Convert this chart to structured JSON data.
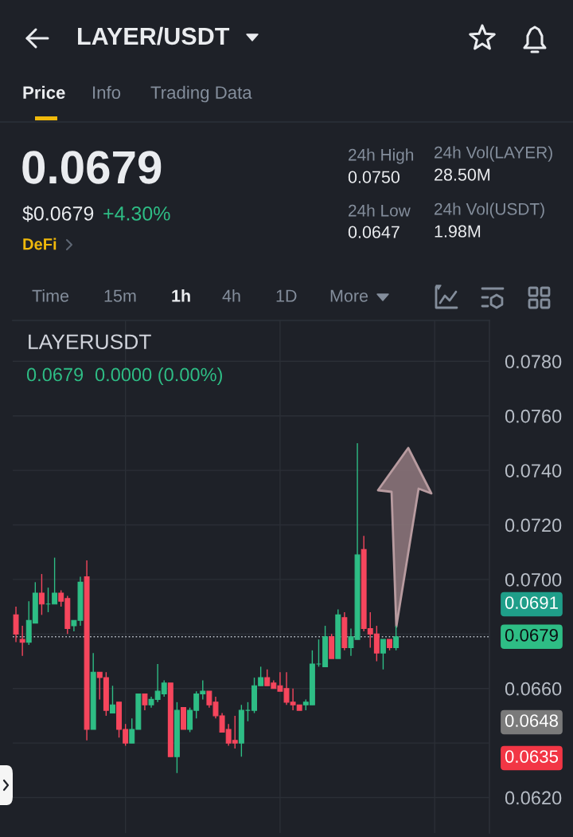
{
  "chart_data": {
    "type": "candlestick",
    "title": "LAYER/USDT",
    "subtitle": "LAYERUSDT",
    "annotations": [
      "Price",
      "Info",
      "Trading Data",
      "0.0679",
      "$0.0679",
      "+4.30%",
      "DeFi",
      "24h High",
      "0.0750",
      "24h Low",
      "0.0647",
      "24h Vol(LAYER)",
      "28.50M",
      "24h Vol(USDT)",
      "1.98M",
      "Time",
      "15m",
      "1h",
      "4h",
      "1D",
      "More",
      "0.0679",
      "0.0000 (0.00%)",
      "0.0691",
      "0.0648",
      "0.0635"
    ],
    "categories": [
      null,
      null,
      null,
      null,
      null,
      null,
      null,
      null,
      null,
      null,
      null,
      null,
      null,
      null,
      null,
      null,
      null,
      null,
      null,
      null,
      null,
      null,
      null,
      null,
      null,
      null,
      null,
      null,
      null,
      null,
      null,
      null,
      null,
      null,
      null,
      null,
      null,
      null,
      null,
      null,
      null,
      null,
      null,
      null,
      null,
      null,
      null,
      null,
      null,
      null,
      null,
      null,
      null,
      null,
      null,
      null,
      null,
      null,
      null,
      null,
      null,
      null,
      null,
      null,
      null,
      null,
      null,
      null,
      null,
      null,
      null,
      null,
      null,
      null
    ],
    "ohlc": [
      [
        0.0687,
        0.069,
        0.0677,
        0.068
      ],
      [
        0.0678,
        0.0683,
        0.0672,
        0.0677
      ],
      [
        0.0677,
        0.0692,
        0.0676,
        0.0685
      ],
      [
        0.0684,
        0.0699,
        0.0684,
        0.0695
      ],
      [
        0.0695,
        0.0702,
        0.0687,
        0.0691
      ],
      [
        0.0691,
        0.0697,
        0.0688,
        0.0691
      ],
      [
        0.0691,
        0.0708,
        0.0691,
        0.0695
      ],
      [
        0.0695,
        0.0696,
        0.069,
        0.0692
      ],
      [
        0.0693,
        0.0694,
        0.068,
        0.0682
      ],
      [
        0.0683,
        0.0685,
        0.0681,
        0.0685
      ],
      [
        0.0685,
        0.0701,
        0.0683,
        0.0699
      ],
      [
        0.0701,
        0.0707,
        0.0641,
        0.0645
      ],
      [
        0.0645,
        0.0673,
        0.0645,
        0.0666
      ],
      [
        0.0666,
        0.0666,
        0.0656,
        0.0664
      ],
      [
        0.0664,
        0.0666,
        0.065,
        0.0652
      ],
      [
        0.0651,
        0.0661,
        0.0651,
        0.0654
      ],
      [
        0.0655,
        0.0655,
        0.0642,
        0.0645
      ],
      [
        0.0645,
        0.0647,
        0.0639,
        0.064
      ],
      [
        0.064,
        0.0649,
        0.064,
        0.0645
      ],
      [
        0.0645,
        0.0658,
        0.0645,
        0.0658
      ],
      [
        0.0658,
        0.0658,
        0.0652,
        0.0654
      ],
      [
        0.0654,
        0.0657,
        0.0653,
        0.0656
      ],
      [
        0.0656,
        0.0669,
        0.0655,
        0.0659
      ],
      [
        0.0658,
        0.0663,
        0.0657,
        0.0662
      ],
      [
        0.0662,
        0.0662,
        0.0635,
        0.0635
      ],
      [
        0.0635,
        0.0655,
        0.0629,
        0.0652
      ],
      [
        0.0653,
        0.0653,
        0.0645,
        0.0645
      ],
      [
        0.0645,
        0.0653,
        0.0644,
        0.0652
      ],
      [
        0.0652,
        0.0659,
        0.0649,
        0.0658
      ],
      [
        0.0658,
        0.0663,
        0.0656,
        0.0659
      ],
      [
        0.0659,
        0.0659,
        0.0653,
        0.0654
      ],
      [
        0.0655,
        0.0657,
        0.0649,
        0.065
      ],
      [
        0.065,
        0.0651,
        0.0644,
        0.0644
      ],
      [
        0.0645,
        0.0647,
        0.0639,
        0.064
      ],
      [
        0.0641,
        0.065,
        0.0638,
        0.064
      ],
      [
        0.064,
        0.0654,
        0.0635,
        0.0652
      ],
      [
        0.0652,
        0.0655,
        0.0648,
        0.0652
      ],
      [
        0.0652,
        0.0664,
        0.0651,
        0.0661
      ],
      [
        0.0661,
        0.0668,
        0.0661,
        0.0664
      ],
      [
        0.0664,
        0.0667,
        0.0661,
        0.0661
      ],
      [
        0.0662,
        0.0663,
        0.066,
        0.066
      ],
      [
        0.0661,
        0.0666,
        0.0659,
        0.0659
      ],
      [
        0.066,
        0.0666,
        0.0654,
        0.0655
      ],
      [
        0.0655,
        0.066,
        0.0652,
        0.0654
      ],
      [
        0.0654,
        0.0654,
        0.0652,
        0.0652
      ],
      [
        0.0654,
        0.0656,
        0.0652,
        0.0655
      ],
      [
        0.0654,
        0.0674,
        0.0654,
        0.0669
      ],
      [
        0.0669,
        0.0678,
        0.0668,
        0.0669
      ],
      [
        0.0668,
        0.0683,
        0.0668,
        0.0679
      ],
      [
        0.0679,
        0.068,
        0.0671,
        0.0671
      ],
      [
        0.0671,
        0.0689,
        0.0671,
        0.0687
      ],
      [
        0.0686,
        0.0688,
        0.0674,
        0.0675
      ],
      [
        0.0675,
        0.0682,
        0.0672,
        0.0679
      ],
      [
        0.0678,
        0.075,
        0.0678,
        0.0709
      ],
      [
        0.0711,
        0.0716,
        0.0681,
        0.0682
      ],
      [
        0.0682,
        0.0688,
        0.0675,
        0.068
      ],
      [
        0.068,
        0.0683,
        0.067,
        0.0673
      ],
      [
        0.0673,
        0.0678,
        0.0667,
        0.0678
      ],
      [
        0.0678,
        0.0678,
        0.0674,
        0.0675
      ],
      [
        0.0675,
        0.0683,
        0.0674,
        0.0679
      ],
      null,
      null,
      null,
      null,
      null,
      null,
      null,
      null,
      null,
      null,
      null,
      null,
      null,
      null
    ],
    "colors": [
      "#f6465d",
      "#f6465d",
      "#2ebd85",
      "#2ebd85",
      "#f6465d",
      "#2ebd85",
      "#2ebd85",
      "#f6465d",
      "#f6465d",
      "#2ebd85",
      "#2ebd85",
      "#f6465d",
      "#2ebd85",
      "#f6465d",
      "#f6465d",
      "#2ebd85",
      "#f6465d",
      "#f6465d",
      "#2ebd85",
      "#2ebd85",
      "#f6465d",
      "#2ebd85",
      "#2ebd85",
      "#2ebd85",
      "#f6465d",
      "#2ebd85",
      "#f6465d",
      "#2ebd85",
      "#2ebd85",
      "#2ebd85",
      "#f6465d",
      "#f6465d",
      "#f6465d",
      "#f6465d",
      "#f6465d",
      "#2ebd85",
      "#2ebd85",
      "#2ebd85",
      "#2ebd85",
      "#f6465d",
      "#f6465d",
      "#f6465d",
      "#f6465d",
      "#f6465d",
      "#f6465d",
      "#2ebd85",
      "#2ebd85",
      "#2ebd85",
      "#2ebd85",
      "#f6465d",
      "#2ebd85",
      "#f6465d",
      "#2ebd85",
      "#2ebd85",
      "#f6465d",
      "#f6465d",
      "#f6465d",
      "#2ebd85",
      "#f6465d",
      "#2ebd85",
      null,
      null,
      null,
      null,
      null,
      null,
      null,
      null,
      null,
      null,
      null,
      null,
      null,
      null
    ],
    "ylim": [
      0.0607,
      0.0795
    ],
    "yticks": [
      {
        "value": 0.062,
        "label": "0.0620"
      },
      {
        "value": 0.064,
        "label": null
      },
      {
        "value": 0.066,
        "label": "0.0660"
      },
      {
        "value": 0.068,
        "label": null
      },
      {
        "value": 0.07,
        "label": "0.0700"
      },
      {
        "value": 0.072,
        "label": "0.0720"
      },
      {
        "value": 0.074,
        "label": "0.0740"
      },
      {
        "value": 0.076,
        "label": "0.0760"
      },
      {
        "value": 0.078,
        "label": "0.0780"
      }
    ],
    "grid": true,
    "tick_labels": "y",
    "ref_lines": [
      {
        "axis": "y",
        "value": 0.0679,
        "label": "0.0679",
        "color": "#b7bdc6",
        "line_style": "dotted"
      }
    ]
  }
}
